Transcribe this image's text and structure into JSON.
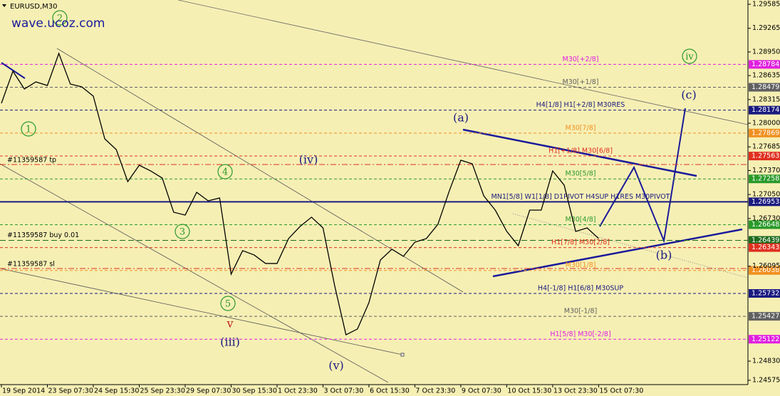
{
  "chart_data": {
    "type": "line",
    "title": "EURUSD,M30",
    "watermark": "wave.ucoz.com",
    "color": "#000000",
    "x": [
      0,
      2,
      4,
      6,
      8,
      10,
      12,
      14,
      16,
      18,
      20,
      22,
      24,
      26,
      28,
      30,
      32,
      34,
      36,
      38,
      40,
      42,
      44,
      46,
      48,
      50,
      52,
      54,
      56,
      58,
      60,
      62,
      64,
      66,
      68,
      70,
      72,
      74,
      76,
      78,
      80,
      82,
      84,
      86,
      88,
      90,
      92,
      94,
      96,
      98,
      100,
      102,
      104
    ],
    "values": [
      1.28266,
      1.28693,
      1.28456,
      1.28551,
      1.28503,
      1.2893,
      1.28522,
      1.28484,
      1.28361,
      1.27791,
      1.27649,
      1.27222,
      1.2744,
      1.27364,
      1.2727,
      1.26814,
      1.26776,
      1.2708,
      1.26966,
      1.27004,
      1.25988,
      1.26302,
      1.26245,
      1.26131,
      1.26131,
      1.26463,
      1.26624,
      1.26748,
      1.26605,
      1.25846,
      1.25181,
      1.25258,
      1.25609,
      1.26178,
      1.26321,
      1.26226,
      1.26415,
      1.26463,
      1.26652,
      1.27099,
      1.27507,
      1.27459,
      1.27032,
      1.26842,
      1.26558,
      1.26368,
      1.26842,
      1.26842,
      1.27364,
      1.27175,
      1.26558,
      1.26605,
      1.26463
    ],
    "xlim": [
      0,
      130
    ],
    "xticks": [
      {
        "value": 0,
        "label": "19 Sep 2014"
      },
      {
        "value": 8,
        "label": "23 Sep 07:30"
      },
      {
        "value": 16,
        "label": "24 Sep 15:30"
      },
      {
        "value": 24,
        "label": "25 Sep 23:30"
      },
      {
        "value": 32,
        "label": "29 Sep 07:30"
      },
      {
        "value": 40,
        "label": "30 Sep 15:30"
      },
      {
        "value": 48,
        "label": "1 Oct 23:30"
      },
      {
        "value": 56,
        "label": "3 Oct 07:30"
      },
      {
        "value": 64,
        "label": "6 Oct 15:30"
      },
      {
        "value": 72,
        "label": "7 Oct 23:30"
      },
      {
        "value": 80,
        "label": "9 Oct 07:30"
      },
      {
        "value": 88,
        "label": "10 Oct 15:30"
      },
      {
        "value": 96,
        "label": "13 Oct 23:30"
      },
      {
        "value": 104,
        "label": "15 Oct 07:30"
      }
    ],
    "ylim": [
      1.24517,
      1.29642
    ],
    "yticks": [
      1.29585,
      1.29265,
      {
        "value": 1.2895,
        "label": "1.28950"
      },
      1.28635,
      1.28315,
      {
        "value": 1.28,
        "label": "1.28000"
      },
      1.27685,
      {
        "value": 1.2737,
        "label": "1.27370"
      },
      {
        "value": 1.2705,
        "label": "1.27050"
      },
      {
        "value": 1.2673,
        "label": "1.26730"
      },
      1.26095,
      {
        "value": 1.2483,
        "label": "1.24830"
      },
      1.24575
    ],
    "levels": [
      {
        "label": "M30[+2/8]",
        "value": 1.28784,
        "color": "#e020e0"
      },
      {
        "label": "M30[+1/8]",
        "value": 1.28479,
        "color": "#606060"
      },
      {
        "label": "H4[1/8] H1[+2/8] M30RES",
        "value": 1.28174,
        "color": "#1a1a80"
      },
      {
        "label": "M30[7/8]",
        "value": 1.27869,
        "color": "#f09020"
      },
      {
        "label": "H1[+1/8] M30[6/8]",
        "value": 1.27563,
        "color": "#e03020"
      },
      {
        "label": "M30[5/8]",
        "value": 1.27258,
        "color": "#2a9a2a"
      },
      {
        "label": "MN1[5/8] W1[1/8] D1PIVOT H4SUP H1RES M30PIVOT",
        "value": 1.26953,
        "color": "#1a1a80"
      },
      {
        "label": "M30[4/8]",
        "value": 1.26648,
        "color": "#2a9a2a"
      },
      {
        "label": "#11359587 buy 0.01",
        "value": 1.26439,
        "color": "#1f6b1f"
      },
      {
        "label": "H1[7/8] M30[2/8]",
        "value": 1.26343,
        "color": "#e03020"
      },
      {
        "label": "M30[1/8]",
        "value": 1.26038,
        "color": "#f09020"
      },
      {
        "label": "H4[-1/8] H1[6/8] M30SUP",
        "value": 1.25732,
        "color": "#1a1a80"
      },
      {
        "label": "M30[-1/8]",
        "value": 1.25427,
        "color": "#606060"
      },
      {
        "label": "H1[5/8] M30[-2/8]",
        "value": 1.25122,
        "color": "#e020e0"
      }
    ],
    "orders": [
      {
        "label": "#11359587 tp",
        "value": 1.2745,
        "color": "#e03020"
      },
      {
        "label": "#11359587 sl",
        "value": 1.26064,
        "color": "#e03020"
      }
    ],
    "annotations": [
      {
        "text": "(a)",
        "color": "#1a1a80"
      },
      {
        "text": "(b)",
        "color": "#1a1a80"
      },
      {
        "text": "(c)",
        "color": "#1a1a80"
      },
      {
        "text": "(iv)",
        "color": "#1a1a80"
      },
      {
        "text": "(iii)",
        "color": "#1a1a80"
      },
      {
        "text": "(v)",
        "color": "#1a1a80"
      },
      {
        "text": "iv",
        "color": "#2a9a2a"
      },
      {
        "text": "v",
        "color": "#c02020"
      },
      {
        "text": "1",
        "color": "#2a9a2a"
      },
      {
        "text": "2",
        "color": "#2a9a2a"
      },
      {
        "text": "4",
        "color": "#2a9a2a"
      },
      {
        "text": "3",
        "color": "#2a9a2a"
      },
      {
        "text": "5",
        "color": "#2a9a2a"
      }
    ]
  }
}
